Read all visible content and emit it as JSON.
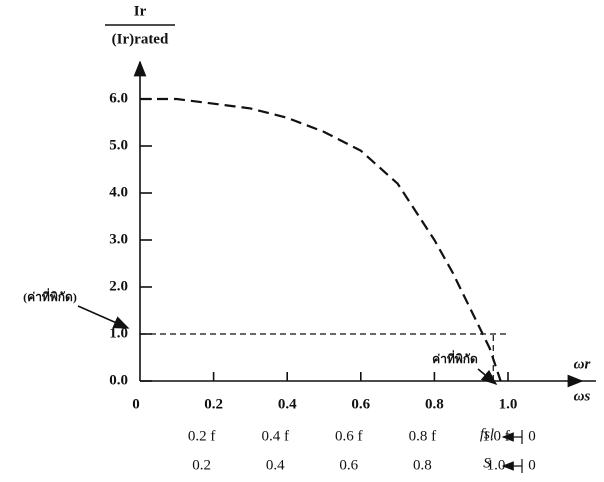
{
  "chart_data": {
    "type": "line",
    "y_label": {
      "numerator": "Ir",
      "denominator": "(Ir)rated"
    },
    "x_label": {
      "numerator": "ωr",
      "denominator": "ωs"
    },
    "series": [
      {
        "color": "#111111",
        "dashed": true,
        "x": [
          0,
          0.1,
          0.2,
          0.3,
          0.4,
          0.5,
          0.6,
          0.7,
          0.8,
          0.85,
          0.9,
          0.95,
          0.98
        ],
        "values": [
          6.0,
          6.0,
          5.9,
          5.8,
          5.6,
          5.3,
          4.9,
          4.2,
          3.0,
          2.3,
          1.5,
          0.7,
          0
        ]
      }
    ],
    "xlim": [
      0,
      1.2
    ],
    "ylim": [
      0,
      6.5
    ],
    "xticks": [
      0,
      0.2,
      0.4,
      0.6,
      0.8,
      {
        "value": 1,
        "label": "1.0"
      }
    ],
    "yticks": [
      {
        "value": 0,
        "label": "0.0"
      },
      {
        "value": 1,
        "label": "1.0"
      },
      {
        "value": 2,
        "label": "2.0"
      },
      {
        "value": 3,
        "label": "3.0"
      },
      {
        "value": 4,
        "label": "4.0"
      },
      {
        "value": 5,
        "label": "5.0"
      },
      {
        "value": 6,
        "label": "6.0"
      }
    ],
    "rated_current": 1.0,
    "rated_speed": 0.96,
    "annotations": [
      "(ค่าที่พิกัด)",
      "ค่าที่พิกัด"
    ],
    "frequency_row": {
      "labels": [
        "1.0 f",
        "0.8 f",
        "0.6 f",
        "0.4 f",
        "0.2 f"
      ],
      "symbol": "fsl",
      "end": "0"
    },
    "slip_row": {
      "labels": [
        "1.0",
        "0.8",
        "0.6",
        "0.4",
        "0.2"
      ],
      "symbol": "S",
      "end": "0"
    }
  }
}
